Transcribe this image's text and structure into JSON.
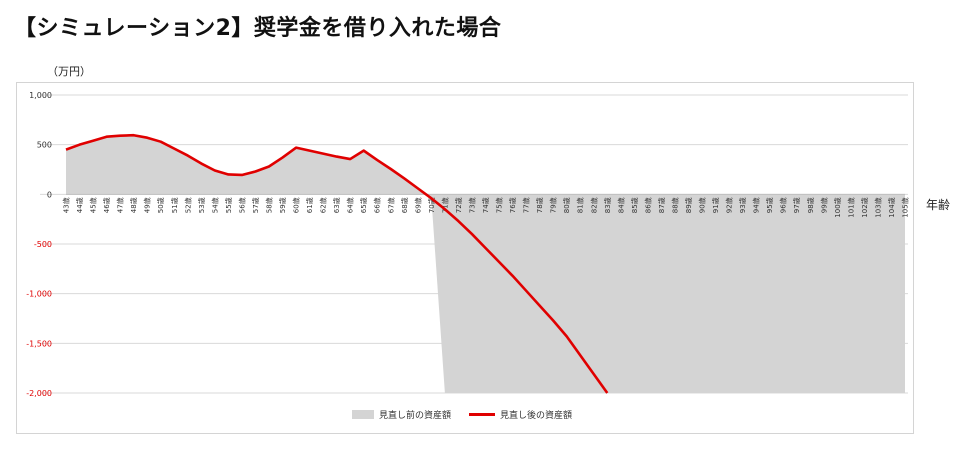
{
  "title": "【シミュレーション2】奨学金を借り入れた場合",
  "chart_data": {
    "type": "area",
    "y_unit": "（万円）",
    "x_unit": "年齢",
    "ylim": [
      -2000,
      1000
    ],
    "yticks": [
      {
        "label": "1,000",
        "value": 1000,
        "negative": false
      },
      {
        "label": "500",
        "value": 500,
        "negative": false
      },
      {
        "label": "0",
        "value": 0,
        "negative": false
      },
      {
        "label": "-500",
        "value": -500,
        "negative": true
      },
      {
        "label": "-1,000",
        "value": -1000,
        "negative": true
      },
      {
        "label": "-1,500",
        "value": -1500,
        "negative": true
      },
      {
        "label": "-2,000",
        "value": -2000,
        "negative": true
      }
    ],
    "negative_tick_color": "#e00000",
    "grid": true,
    "legend_position": "bottom",
    "categories": [
      "43歳",
      "44歳",
      "45歳",
      "46歳",
      "47歳",
      "48歳",
      "49歳",
      "50歳",
      "51歳",
      "52歳",
      "53歳",
      "54歳",
      "55歳",
      "56歳",
      "57歳",
      "58歳",
      "59歳",
      "60歳",
      "61歳",
      "62歳",
      "63歳",
      "64歳",
      "65歳",
      "66歳",
      "67歳",
      "68歳",
      "69歳",
      "70歳",
      "71歳",
      "72歳",
      "73歳",
      "74歳",
      "75歳",
      "76歳",
      "77歳",
      "78歳",
      "79歳",
      "80歳",
      "81歳",
      "82歳",
      "83歳",
      "84歳",
      "85歳",
      "86歳",
      "87歳",
      "88歳",
      "89歳",
      "90歳",
      "91歳",
      "92歳",
      "93歳",
      "94歳",
      "95歳",
      "96歳",
      "97歳",
      "98歳",
      "99歳",
      "100歳",
      "101歳",
      "102歳",
      "103歳",
      "104歳",
      "105歳"
    ],
    "series": [
      {
        "name": "見直し前の資産額",
        "kind": "area",
        "color": "#d4d4d4",
        "values": [
          450,
          500,
          540,
          580,
          590,
          595,
          570,
          530,
          460,
          390,
          310,
          240,
          200,
          195,
          230,
          280,
          370,
          470,
          440,
          410,
          380,
          355,
          440,
          345,
          255,
          160,
          60,
          -40,
          -2000,
          -2000,
          -2000,
          -2000,
          -2000,
          -2000,
          -2000,
          -2000,
          -2000,
          -2000,
          -2000,
          -2000,
          -2000,
          -2000,
          -2000,
          -2000,
          -2000,
          -2000,
          -2000,
          -2000,
          -2000,
          -2000,
          -2000,
          -2000,
          -2000,
          -2000,
          -2000,
          -2000,
          -2000,
          -2000,
          -2000,
          -2000,
          -2000,
          -2000,
          -2000
        ]
      },
      {
        "name": "見直し後の資産額",
        "kind": "line",
        "color": "#e00000",
        "values": [
          450,
          500,
          540,
          580,
          590,
          595,
          570,
          530,
          460,
          390,
          310,
          240,
          200,
          195,
          230,
          280,
          370,
          470,
          440,
          410,
          380,
          355,
          440,
          345,
          255,
          160,
          60,
          -40,
          -150,
          -270,
          -400,
          -540,
          -680,
          -820,
          -970,
          -1120,
          -1270,
          -1430,
          -1620,
          -1810,
          -2000,
          null,
          null,
          null,
          null,
          null,
          null,
          null,
          null,
          null,
          null,
          null,
          null,
          null,
          null,
          null,
          null,
          null,
          null,
          null,
          null,
          null,
          null
        ]
      }
    ]
  }
}
